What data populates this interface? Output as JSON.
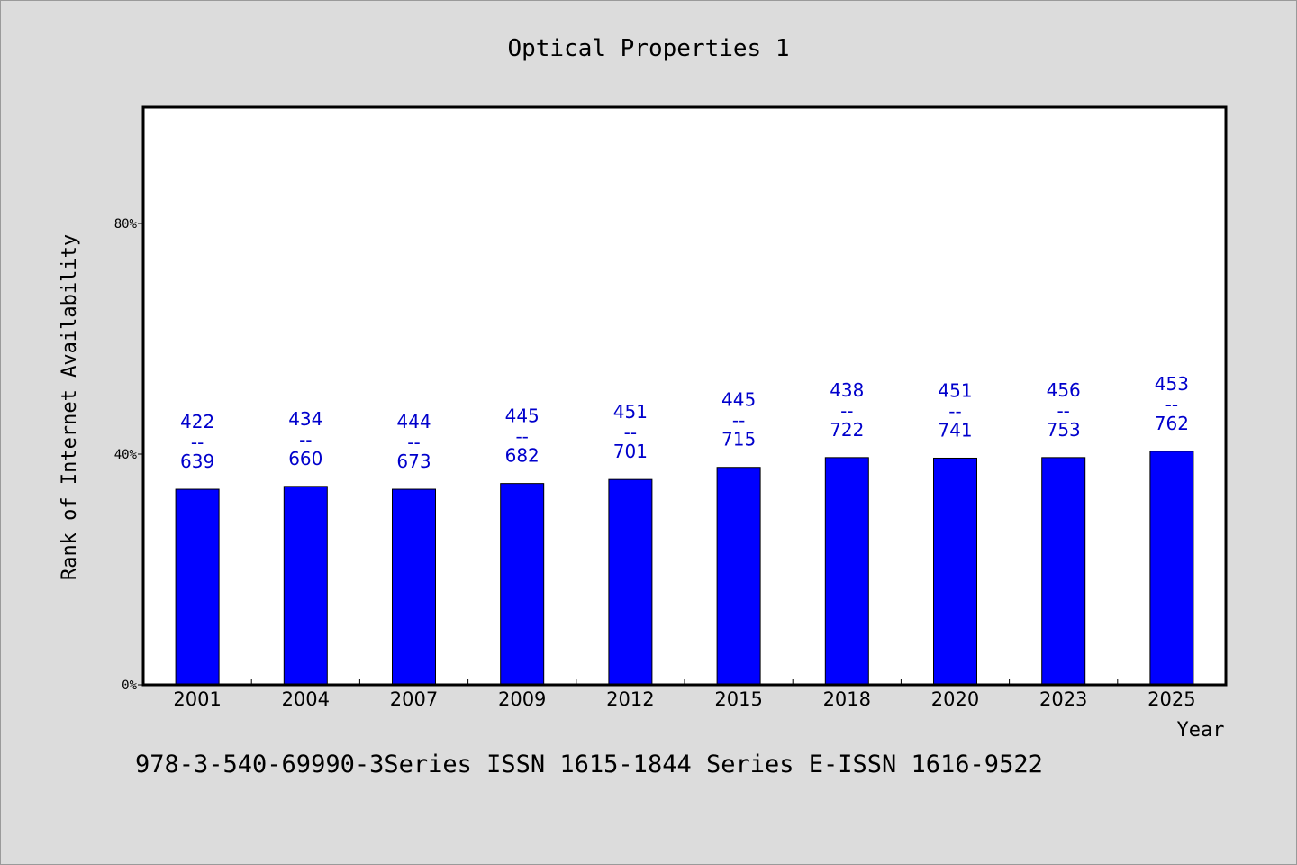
{
  "chart_data": {
    "type": "bar",
    "title": "Optical Properties 1",
    "xlabel": "Year",
    "ylabel": "Rank of Internet Availability",
    "categories": [
      "2001",
      "2004",
      "2007",
      "2009",
      "2012",
      "2015",
      "2018",
      "2020",
      "2023",
      "2025"
    ],
    "values": [
      33.9,
      34.4,
      33.9,
      34.9,
      35.6,
      37.7,
      39.4,
      39.3,
      39.4,
      40.5
    ],
    "data_labels": [
      {
        "top": "422",
        "sep": "--",
        "bottom": "639"
      },
      {
        "top": "434",
        "sep": "--",
        "bottom": "660"
      },
      {
        "top": "444",
        "sep": "--",
        "bottom": "673"
      },
      {
        "top": "445",
        "sep": "--",
        "bottom": "682"
      },
      {
        "top": "451",
        "sep": "--",
        "bottom": "701"
      },
      {
        "top": "445",
        "sep": "--",
        "bottom": "715"
      },
      {
        "top": "438",
        "sep": "--",
        "bottom": "722"
      },
      {
        "top": "451",
        "sep": "--",
        "bottom": "741"
      },
      {
        "top": "456",
        "sep": "--",
        "bottom": "753"
      },
      {
        "top": "453",
        "sep": "--",
        "bottom": "762"
      }
    ],
    "ylim": [
      0,
      100
    ],
    "yticks": [
      0,
      40,
      80
    ],
    "ytick_labels": [
      "0%",
      "40%",
      "80%"
    ],
    "grid": false,
    "colors": {
      "bar": "#0000ff",
      "label": "#0000cc",
      "plot_bg": "#ffffff",
      "page_bg": "#dcdcdc"
    }
  },
  "footer_text": "978-3-540-69990-3Series ISSN 1615-1844 Series E-ISSN 1616-9522"
}
